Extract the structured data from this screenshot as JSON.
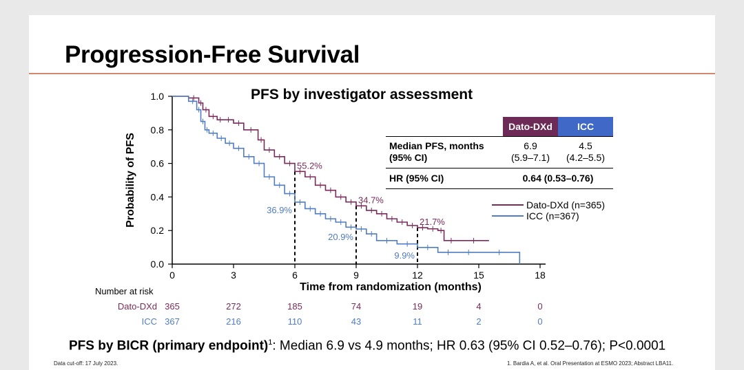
{
  "slide": {
    "title": "Progression-Free Survival",
    "accent_color": "#d4876a"
  },
  "chart_data": {
    "type": "line",
    "subtype": "kaplan-meier",
    "title": "PFS by investigator assessment",
    "xlabel": "Time from randomization (months)",
    "ylabel": "Probability of PFS",
    "xlim": [
      0,
      18
    ],
    "ylim": [
      0,
      1
    ],
    "x_ticks": [
      "0",
      "3",
      "6",
      "9",
      "12",
      "15",
      "18"
    ],
    "y_ticks": [
      "0.0",
      "0.2",
      "0.4",
      "0.6",
      "0.8",
      "1.0"
    ],
    "series": [
      {
        "name": "Dato-DXd (n=365)",
        "color": "#7a2a5a",
        "x": [
          0,
          0.8,
          1.3,
          1.5,
          1.8,
          2.2,
          2.5,
          3.0,
          3.5,
          4.2,
          4.5,
          5.0,
          5.5,
          6.0,
          6.5,
          7.0,
          7.5,
          8.0,
          8.5,
          9.0,
          9.5,
          10.0,
          10.5,
          11.0,
          11.5,
          12.0,
          12.5,
          13.0,
          13.3,
          14.0,
          15.5
        ],
        "y": [
          1.0,
          0.99,
          0.96,
          0.92,
          0.88,
          0.86,
          0.86,
          0.84,
          0.8,
          0.74,
          0.68,
          0.64,
          0.6,
          0.552,
          0.52,
          0.47,
          0.44,
          0.4,
          0.37,
          0.347,
          0.32,
          0.3,
          0.27,
          0.25,
          0.23,
          0.217,
          0.21,
          0.2,
          0.14,
          0.14,
          0.14
        ]
      },
      {
        "name": "ICC (n=367)",
        "color": "#4f7cc3",
        "x": [
          0,
          0.8,
          1.2,
          1.4,
          1.6,
          1.8,
          2.2,
          2.6,
          3.0,
          3.5,
          4.0,
          4.5,
          5.0,
          5.5,
          6.0,
          6.5,
          7.0,
          7.5,
          8.0,
          8.5,
          9.0,
          9.5,
          10.0,
          11.0,
          12.0,
          13.0,
          14.0,
          15.0,
          17.0
        ],
        "y": [
          1.0,
          0.97,
          0.92,
          0.85,
          0.8,
          0.78,
          0.75,
          0.72,
          0.69,
          0.64,
          0.6,
          0.52,
          0.47,
          0.42,
          0.369,
          0.33,
          0.3,
          0.27,
          0.25,
          0.22,
          0.209,
          0.18,
          0.14,
          0.12,
          0.099,
          0.07,
          0.07,
          0.07,
          0.0
        ]
      }
    ],
    "annotations": [
      {
        "series": 0,
        "x": 6,
        "y": 0.552,
        "label": "55.2%"
      },
      {
        "series": 0,
        "x": 9,
        "y": 0.347,
        "label": "34.7%"
      },
      {
        "series": 0,
        "x": 12,
        "y": 0.217,
        "label": "21.7%"
      },
      {
        "series": 1,
        "x": 6,
        "y": 0.369,
        "label": "36.9%"
      },
      {
        "series": 1,
        "x": 9,
        "y": 0.209,
        "label": "20.9%"
      },
      {
        "series": 1,
        "x": 12,
        "y": 0.099,
        "label": "9.9%"
      }
    ],
    "legend_position": "right"
  },
  "results_table": {
    "col_dato": "Dato-DXd",
    "col_icc": "ICC",
    "row1_label_line1": "Median PFS, months",
    "row1_label_line2": "(95% CI)",
    "row1_dato_line1": "6.9",
    "row1_dato_line2": "(5.9–7.1)",
    "row1_icc_line1": "4.5",
    "row1_icc_line2": "(4.2–5.5)",
    "row2_label": "HR (95% CI)",
    "row2_value": "0.64 (0.53–0.76)"
  },
  "number_at_risk": {
    "header": "Number at risk",
    "rows": [
      {
        "label": "Dato-DXd",
        "values": [
          "365",
          "272",
          "185",
          "74",
          "19",
          "4",
          "0"
        ]
      },
      {
        "label": "ICC",
        "values": [
          "367",
          "216",
          "110",
          "43",
          "11",
          "2",
          "0"
        ]
      }
    ]
  },
  "bottom": {
    "bold": "PFS by BICR (primary endpoint)",
    "sup": "1",
    "rest": ": Median 6.9 vs 4.9 months; HR 0.63 (95% CI 0.52–0.76); P<0.0001"
  },
  "footnotes": {
    "left": "Data cut-off: 17 July 2023.",
    "right": "1. Bardia A, et al. Oral Presentation at ESMO 2023; Abstract LBA11."
  }
}
